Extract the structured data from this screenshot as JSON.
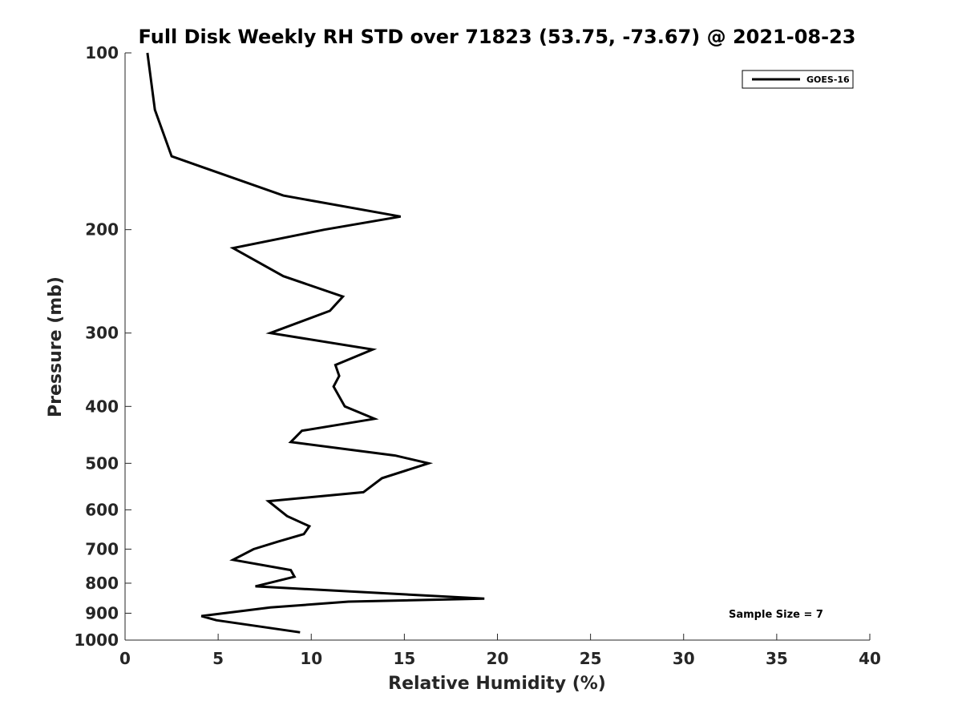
{
  "chart_data": {
    "type": "line",
    "title": "Full Disk Weekly RH STD over 71823 (53.75, -73.67) @ 2021-08-23",
    "xlabel": "Relative Humidity (%)",
    "ylabel": "Pressure (mb)",
    "xlim": [
      0,
      40
    ],
    "ylim": [
      100,
      1000
    ],
    "y_scale": "log",
    "y_reversed": true,
    "x_ticks": [
      0,
      5,
      10,
      15,
      20,
      25,
      30,
      35,
      40
    ],
    "y_ticks": [
      100,
      200,
      300,
      400,
      500,
      600,
      700,
      800,
      900,
      1000
    ],
    "grid": false,
    "legend_position": "top-right",
    "annotation": "Sample Size = 7",
    "series": [
      {
        "name": "GOES-16",
        "color": "#000000",
        "points": [
          [
            1.2,
            100
          ],
          [
            1.6,
            125
          ],
          [
            2.5,
            150
          ],
          [
            8.5,
            175
          ],
          [
            14.8,
            190
          ],
          [
            10.7,
            200
          ],
          [
            5.8,
            215
          ],
          [
            8.5,
            240
          ],
          [
            11.7,
            260
          ],
          [
            11.0,
            275
          ],
          [
            7.8,
            300
          ],
          [
            13.3,
            320
          ],
          [
            11.3,
            340
          ],
          [
            11.5,
            355
          ],
          [
            11.2,
            370
          ],
          [
            11.8,
            400
          ],
          [
            13.4,
            420
          ],
          [
            9.5,
            440
          ],
          [
            8.9,
            460
          ],
          [
            14.5,
            485
          ],
          [
            16.3,
            500
          ],
          [
            13.8,
            530
          ],
          [
            12.8,
            560
          ],
          [
            7.7,
            580
          ],
          [
            8.7,
            615
          ],
          [
            9.9,
            640
          ],
          [
            9.6,
            660
          ],
          [
            8.2,
            680
          ],
          [
            6.9,
            700
          ],
          [
            5.8,
            730
          ],
          [
            8.9,
            760
          ],
          [
            9.1,
            780
          ],
          [
            7.0,
            810
          ],
          [
            19.3,
            850
          ],
          [
            12.0,
            860
          ],
          [
            7.8,
            880
          ],
          [
            5.3,
            900
          ],
          [
            4.1,
            910
          ],
          [
            4.9,
            925
          ],
          [
            9.4,
            970
          ]
        ]
      }
    ]
  }
}
